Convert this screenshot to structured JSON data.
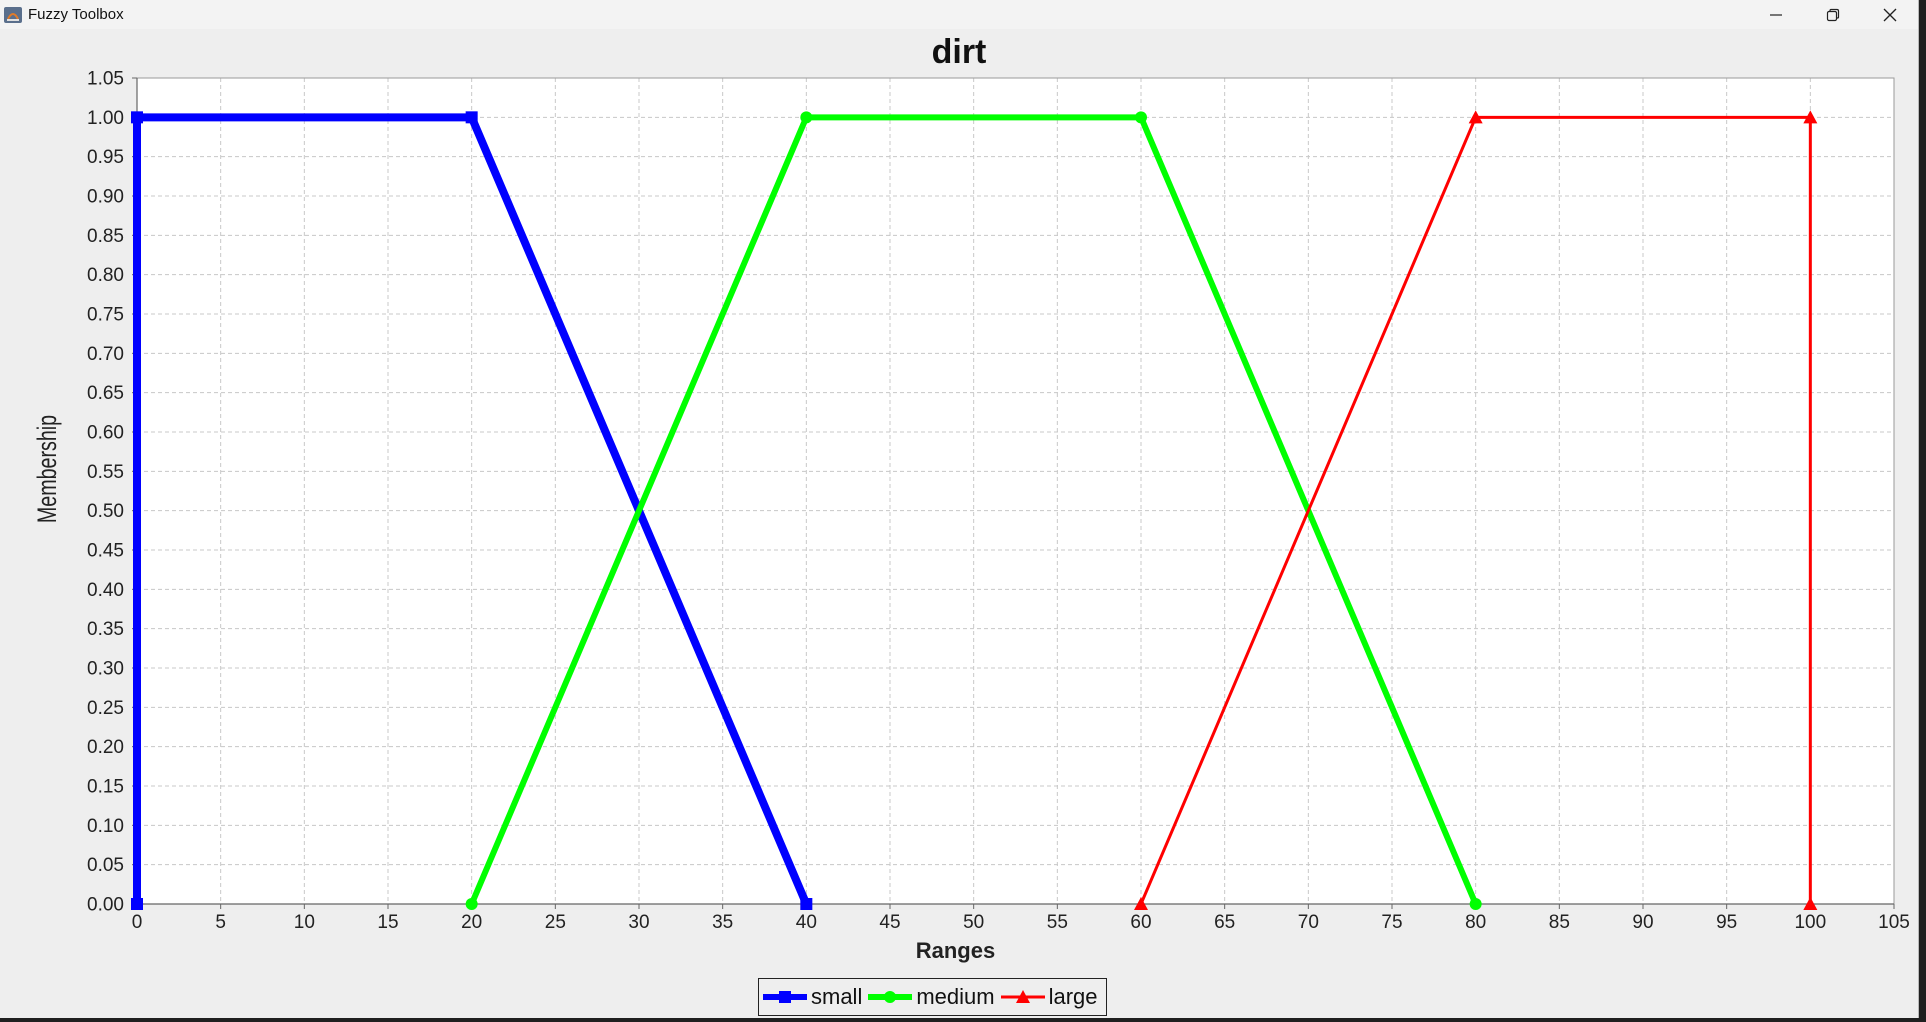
{
  "window": {
    "title": "Fuzzy Toolbox",
    "icon": "java-app-icon",
    "controls": [
      "minimize-icon",
      "restore-icon",
      "close-icon"
    ]
  },
  "chart_data": {
    "type": "line",
    "title": "dirt",
    "xlabel": "Ranges",
    "ylabel": "Membership",
    "xlim": [
      0,
      105
    ],
    "ylim": [
      0,
      1.05
    ],
    "x_ticks": [
      "0",
      "5",
      "10",
      "15",
      "20",
      "25",
      "30",
      "35",
      "40",
      "45",
      "50",
      "55",
      "60",
      "65",
      "70",
      "75",
      "80",
      "85",
      "90",
      "95",
      "100",
      "105"
    ],
    "y_ticks": [
      "0.00",
      "0.05",
      "0.10",
      "0.15",
      "0.20",
      "0.25",
      "0.30",
      "0.35",
      "0.40",
      "0.45",
      "0.50",
      "0.55",
      "0.60",
      "0.65",
      "0.70",
      "0.75",
      "0.80",
      "0.85",
      "0.90",
      "0.95",
      "1.00",
      "1.05"
    ],
    "grid": true,
    "legend_position": "bottom-center",
    "series": [
      {
        "name": "small",
        "color": "#0000ff",
        "marker": "square",
        "x": [
          0,
          0,
          20,
          40
        ],
        "y": [
          0,
          1,
          1,
          0
        ]
      },
      {
        "name": "medium",
        "color": "#00ff00",
        "marker": "circle",
        "x": [
          20,
          40,
          60,
          80
        ],
        "y": [
          0,
          1,
          1,
          0
        ]
      },
      {
        "name": "large",
        "color": "#ff0000",
        "marker": "triangle",
        "x": [
          60,
          80,
          100,
          100
        ],
        "y": [
          0,
          1,
          1,
          0
        ]
      }
    ]
  }
}
